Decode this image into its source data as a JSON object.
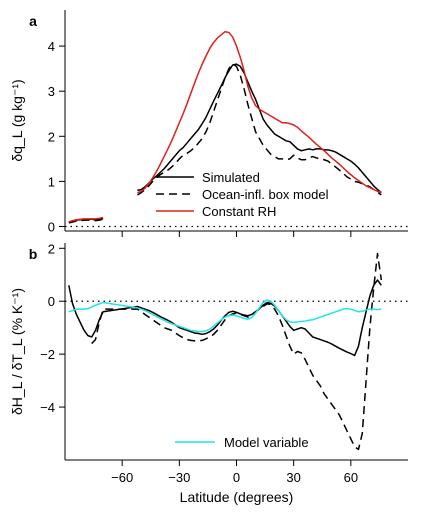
{
  "chart_data": [
    {
      "panel": "a",
      "type": "line",
      "ylabel": "δq_L (g kg⁻¹)",
      "xlim": [
        -90,
        90
      ],
      "ylim": [
        -0.1,
        4.8
      ],
      "yticks": [
        0,
        1,
        2,
        3,
        4
      ],
      "grid": false,
      "legend_position": "bottom-right",
      "series": [
        {
          "name": "Simulated",
          "style": "solid",
          "color": "#000000",
          "x": [
            -52,
            -50,
            -48,
            -46,
            -44,
            -42,
            -40,
            -38,
            -36,
            -34,
            -32,
            -30,
            -28,
            -26,
            -24,
            -22,
            -20,
            -18,
            -16,
            -14,
            -12,
            -10,
            -8,
            -6,
            -4,
            -2,
            0,
            2,
            4,
            6,
            8,
            10,
            12,
            14,
            16,
            18,
            20,
            22,
            24,
            26,
            28,
            30,
            32,
            34,
            36,
            38,
            40,
            42,
            44,
            46,
            48,
            50,
            52,
            54,
            56,
            58,
            60,
            62,
            64,
            66,
            68,
            70,
            72,
            74,
            76
          ],
          "y": [
            0.8,
            0.82,
            0.88,
            0.96,
            1.05,
            1.12,
            1.2,
            1.28,
            1.38,
            1.48,
            1.58,
            1.68,
            1.75,
            1.85,
            1.95,
            2.05,
            2.15,
            2.28,
            2.42,
            2.6,
            2.78,
            2.95,
            3.12,
            3.3,
            3.45,
            3.58,
            3.6,
            3.55,
            3.4,
            3.2,
            3.0,
            2.82,
            2.6,
            2.38,
            2.25,
            2.15,
            2.05,
            2.0,
            1.95,
            1.9,
            1.88,
            1.8,
            1.72,
            1.68,
            1.7,
            1.72,
            1.7,
            1.72,
            1.72,
            1.7,
            1.7,
            1.68,
            1.65,
            1.6,
            1.55,
            1.5,
            1.45,
            1.38,
            1.3,
            1.2,
            1.1,
            1.0,
            0.9,
            0.82,
            0.75
          ]
        },
        {
          "name": "Ocean-infl. box model",
          "style": "dashed",
          "color": "#000000",
          "x": [
            -52,
            -50,
            -48,
            -46,
            -44,
            -42,
            -40,
            -38,
            -36,
            -34,
            -32,
            -30,
            -28,
            -26,
            -24,
            -22,
            -20,
            -18,
            -16,
            -14,
            -12,
            -10,
            -8,
            -6,
            -4,
            -2,
            0,
            2,
            4,
            6,
            8,
            10,
            12,
            14,
            16,
            18,
            20,
            22,
            24,
            26,
            28,
            30,
            32,
            34,
            36,
            38,
            40,
            42,
            44,
            46,
            48,
            50,
            52,
            54,
            56,
            58,
            60,
            62,
            64,
            66,
            68,
            70,
            72,
            74,
            76
          ],
          "y": [
            0.7,
            0.75,
            0.82,
            0.9,
            1.0,
            1.08,
            1.15,
            1.2,
            1.25,
            1.32,
            1.4,
            1.5,
            1.58,
            1.62,
            1.68,
            1.75,
            1.85,
            1.95,
            2.1,
            2.3,
            2.55,
            2.8,
            3.05,
            3.3,
            3.5,
            3.6,
            3.55,
            3.35,
            3.05,
            2.7,
            2.4,
            2.1,
            1.95,
            1.8,
            1.7,
            1.6,
            1.55,
            1.5,
            1.5,
            1.48,
            1.5,
            1.58,
            1.52,
            1.48,
            1.48,
            1.52,
            1.55,
            1.52,
            1.5,
            1.48,
            1.45,
            1.38,
            1.32,
            1.25,
            1.18,
            1.1,
            1.05,
            1.0,
            0.98,
            0.95,
            0.92,
            0.88,
            0.82,
            0.76,
            0.7
          ]
        },
        {
          "name": "Constant RH",
          "style": "solid",
          "color": "#e0201b",
          "x": [
            -52,
            -50,
            -48,
            -46,
            -44,
            -42,
            -40,
            -38,
            -36,
            -34,
            -32,
            -30,
            -28,
            -26,
            -24,
            -22,
            -20,
            -18,
            -16,
            -14,
            -12,
            -10,
            -8,
            -6,
            -4,
            -2,
            0,
            2,
            4,
            6,
            8,
            10,
            12,
            14,
            16,
            18,
            20,
            22,
            24,
            26,
            28,
            30,
            32,
            34,
            36,
            38,
            40,
            42,
            44,
            46,
            48,
            50,
            52,
            54,
            56,
            58,
            60,
            62,
            64,
            66,
            68,
            70,
            72,
            74,
            76
          ],
          "y": [
            0.75,
            0.78,
            0.85,
            0.95,
            1.08,
            1.22,
            1.38,
            1.55,
            1.72,
            1.9,
            2.1,
            2.3,
            2.5,
            2.72,
            2.95,
            3.18,
            3.4,
            3.6,
            3.78,
            3.95,
            4.08,
            4.18,
            4.25,
            4.32,
            4.3,
            4.2,
            4.0,
            3.75,
            3.45,
            3.1,
            2.85,
            2.68,
            2.6,
            2.55,
            2.5,
            2.45,
            2.4,
            2.35,
            2.3,
            2.3,
            2.28,
            2.25,
            2.2,
            2.12,
            2.05,
            1.98,
            1.9,
            1.82,
            1.75,
            1.68,
            1.6,
            1.52,
            1.45,
            1.38,
            1.3,
            1.22,
            1.15,
            1.08,
            1.02,
            0.96,
            0.9,
            0.86,
            0.82,
            0.78,
            0.76
          ]
        },
        {
          "name": "Simulated",
          "style": "solid",
          "color": "#000000",
          "legend": false,
          "x": [
            -88,
            -86,
            -84,
            -82,
            -80,
            -78,
            -76,
            -74,
            -72,
            -70
          ],
          "y": [
            0.1,
            0.12,
            0.14,
            0.15,
            0.15,
            0.16,
            0.16,
            0.15,
            0.16,
            0.18
          ]
        },
        {
          "name": "Ocean-infl. box model",
          "style": "dashed",
          "color": "#000000",
          "legend": false,
          "x": [
            -88,
            -86,
            -84,
            -82,
            -80,
            -78,
            -76,
            -74,
            -72,
            -70
          ],
          "y": [
            0.08,
            0.1,
            0.12,
            0.13,
            0.14,
            0.14,
            0.14,
            0.13,
            0.14,
            0.16
          ]
        },
        {
          "name": "Constant RH",
          "style": "solid",
          "color": "#e0201b",
          "legend": false,
          "x": [
            -88,
            -86,
            -84,
            -82,
            -80,
            -78,
            -76,
            -74,
            -72,
            -70
          ],
          "y": [
            0.1,
            0.13,
            0.15,
            0.16,
            0.17,
            0.17,
            0.17,
            0.17,
            0.18,
            0.2
          ]
        }
      ],
      "zero_line": true
    },
    {
      "panel": "b",
      "type": "line",
      "ylabel": "δH_L / δT_L (% K⁻¹)",
      "xlabel": "Latitude (degrees)",
      "xlim": [
        -90,
        90
      ],
      "xticks": [
        -60,
        -30,
        0,
        30,
        60
      ],
      "ylim": [
        -6,
        2.2
      ],
      "yticks": [
        -4,
        -2,
        0,
        2
      ],
      "grid": false,
      "legend_position": "bottom-center",
      "series": [
        {
          "name": "Simulated",
          "style": "solid",
          "color": "#000000",
          "legend": false,
          "x": [
            -88,
            -86,
            -84,
            -82,
            -80,
            -78,
            -76,
            -74,
            -72,
            -70,
            -52,
            -50,
            -48,
            -46,
            -44,
            -42,
            -40,
            -38,
            -36,
            -34,
            -32,
            -30,
            -28,
            -26,
            -24,
            -22,
            -20,
            -18,
            -16,
            -14,
            -12,
            -10,
            -8,
            -6,
            -4,
            -2,
            0,
            2,
            4,
            6,
            8,
            10,
            12,
            14,
            16,
            18,
            20,
            22,
            24,
            26,
            28,
            30,
            32,
            34,
            36,
            38,
            40,
            42,
            44,
            46,
            48,
            50,
            52,
            54,
            56,
            58,
            60,
            62,
            64,
            66,
            68,
            70,
            72,
            74,
            76
          ],
          "y": [
            0.6,
            -0.1,
            -0.5,
            -0.8,
            -1.1,
            -1.3,
            -1.35,
            -1.1,
            -0.7,
            -0.4,
            -0.2,
            -0.25,
            -0.3,
            -0.35,
            -0.42,
            -0.5,
            -0.58,
            -0.65,
            -0.72,
            -0.8,
            -0.9,
            -1.0,
            -1.05,
            -1.1,
            -1.15,
            -1.2,
            -1.22,
            -1.25,
            -1.22,
            -1.15,
            -1.05,
            -0.9,
            -0.72,
            -0.55,
            -0.42,
            -0.38,
            -0.42,
            -0.48,
            -0.52,
            -0.55,
            -0.5,
            -0.4,
            -0.28,
            -0.15,
            -0.05,
            -0.08,
            -0.18,
            -0.35,
            -0.55,
            -0.75,
            -0.95,
            -1.1,
            -1.05,
            -1.0,
            -1.05,
            -1.2,
            -1.35,
            -1.4,
            -1.45,
            -1.5,
            -1.55,
            -1.62,
            -1.7,
            -1.78,
            -1.85,
            -1.92,
            -1.98,
            -2.05,
            -1.7,
            -1.0,
            -0.4,
            0.2,
            0.6,
            0.8,
            0.6
          ]
        },
        {
          "name": "Ocean-infl. box model",
          "style": "dashed",
          "color": "#000000",
          "legend": false,
          "x": [
            -76,
            -74,
            -72,
            -70,
            -52,
            -50,
            -48,
            -46,
            -44,
            -42,
            -40,
            -38,
            -36,
            -34,
            -32,
            -30,
            -28,
            -26,
            -24,
            -22,
            -20,
            -18,
            -16,
            -14,
            -12,
            -10,
            -8,
            -6,
            -4,
            -2,
            0,
            2,
            4,
            6,
            8,
            10,
            12,
            14,
            16,
            18,
            20,
            22,
            24,
            26,
            28,
            30,
            32,
            34,
            36,
            38,
            40,
            42,
            44,
            46,
            48,
            50,
            52,
            54,
            56,
            58,
            60,
            62,
            64,
            66,
            68,
            70,
            72,
            74,
            76
          ],
          "y": [
            -1.6,
            -1.45,
            -0.8,
            -0.3,
            -0.3,
            -0.4,
            -0.5,
            -0.6,
            -0.7,
            -0.8,
            -0.9,
            -1.0,
            -1.05,
            -1.1,
            -1.2,
            -1.3,
            -1.38,
            -1.45,
            -1.48,
            -1.5,
            -1.5,
            -1.48,
            -1.42,
            -1.35,
            -1.25,
            -1.1,
            -0.9,
            -0.7,
            -0.55,
            -0.48,
            -0.45,
            -0.5,
            -0.55,
            -0.6,
            -0.5,
            -0.4,
            -0.3,
            -0.2,
            -0.1,
            -0.12,
            -0.3,
            -0.55,
            -0.9,
            -1.3,
            -1.7,
            -2.0,
            -1.9,
            -1.95,
            -2.2,
            -2.5,
            -2.8,
            -3.0,
            -3.2,
            -3.5,
            -3.7,
            -3.9,
            -4.1,
            -4.3,
            -4.6,
            -4.9,
            -5.2,
            -5.5,
            -5.6,
            -5.0,
            -3.0,
            -1.0,
            0.5,
            1.8,
            0.8
          ]
        },
        {
          "name": "Model variable",
          "style": "solid",
          "color": "#22e5e5",
          "x": [
            -88,
            -86,
            -84,
            -82,
            -80,
            -78,
            -76,
            -74,
            -72,
            -70,
            -52,
            -50,
            -48,
            -46,
            -44,
            -42,
            -40,
            -38,
            -36,
            -34,
            -32,
            -30,
            -28,
            -26,
            -24,
            -22,
            -20,
            -18,
            -16,
            -14,
            -12,
            -10,
            -8,
            -6,
            -4,
            -2,
            0,
            2,
            4,
            6,
            8,
            10,
            12,
            14,
            16,
            18,
            20,
            22,
            24,
            26,
            28,
            30,
            32,
            34,
            36,
            38,
            40,
            42,
            44,
            46,
            48,
            50,
            52,
            54,
            56,
            58,
            60,
            62,
            64,
            66,
            68,
            70,
            72,
            74,
            76
          ],
          "y": [
            -0.4,
            -0.35,
            -0.3,
            -0.3,
            -0.3,
            -0.28,
            -0.22,
            -0.15,
            -0.1,
            -0.05,
            -0.25,
            -0.3,
            -0.35,
            -0.42,
            -0.5,
            -0.58,
            -0.65,
            -0.72,
            -0.8,
            -0.85,
            -0.9,
            -0.95,
            -1.0,
            -1.05,
            -1.1,
            -1.12,
            -1.15,
            -1.15,
            -1.12,
            -1.05,
            -0.95,
            -0.82,
            -0.7,
            -0.6,
            -0.55,
            -0.52,
            -0.55,
            -0.6,
            -0.65,
            -0.68,
            -0.62,
            -0.45,
            -0.25,
            -0.05,
            0.05,
            0.0,
            -0.15,
            -0.35,
            -0.55,
            -0.7,
            -0.78,
            -0.8,
            -0.78,
            -0.76,
            -0.75,
            -0.72,
            -0.7,
            -0.65,
            -0.6,
            -0.55,
            -0.5,
            -0.45,
            -0.4,
            -0.35,
            -0.3,
            -0.28,
            -0.3,
            -0.35,
            -0.4,
            -0.38,
            -0.33,
            -0.3,
            -0.3,
            -0.32,
            -0.3
          ]
        }
      ],
      "zero_line": true
    }
  ]
}
